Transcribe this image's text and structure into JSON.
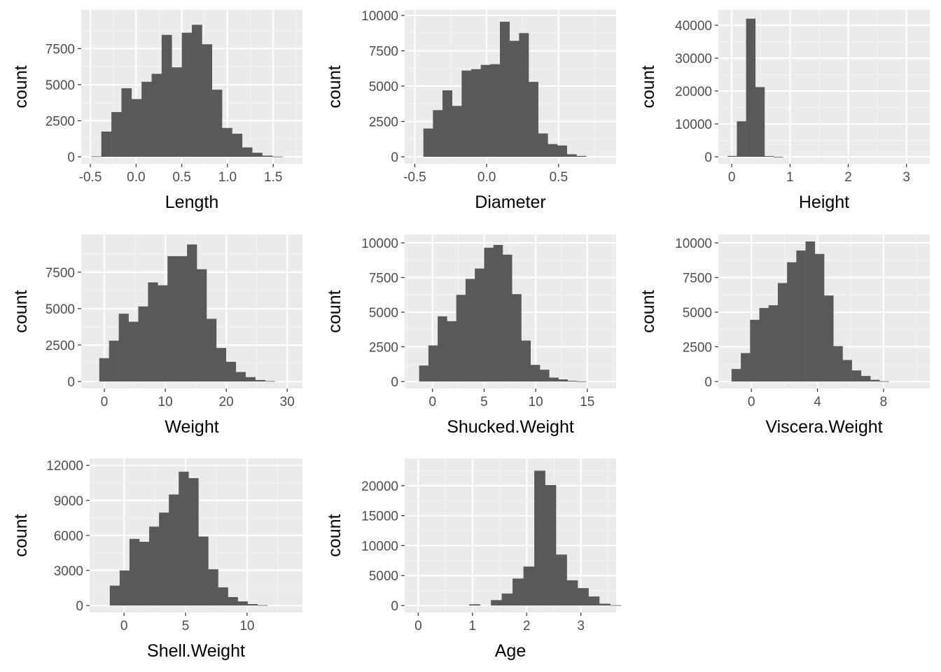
{
  "colors": {
    "panel_background": "#ebebeb",
    "grid_major": "#ffffff",
    "grid_minor": "#f5f5f5",
    "bar_fill": "#595959",
    "tick_text": "#4d4d4d",
    "axis_text": "#000000"
  },
  "chart_data": [
    {
      "type": "bar",
      "xlabel": "Length",
      "ylabel": "count",
      "xlim": [
        -0.6,
        1.82
      ],
      "ylim": [
        0,
        9800
      ],
      "x_ticks": [
        -0.5,
        0.0,
        0.5,
        1.0,
        1.5
      ],
      "x_tick_labels": [
        "-0.5",
        "0.0",
        "0.5",
        "1.0",
        "1.5"
      ],
      "y_ticks": [
        0,
        2500,
        5000,
        7500
      ],
      "y_tick_labels": [
        "0",
        "2500",
        "5000",
        "7500"
      ],
      "bin_start": -0.49,
      "bin_width": 0.11,
      "values": [
        30,
        1750,
        3100,
        4750,
        4000,
        5200,
        5750,
        8450,
        6200,
        8600,
        9150,
        7800,
        4650,
        2000,
        1600,
        650,
        280,
        80,
        15,
        0,
        0,
        0
      ]
    },
    {
      "type": "bar",
      "xlabel": "Diameter",
      "ylabel": "count",
      "xlim": [
        -0.57,
        0.9
      ],
      "ylim": [
        0,
        10000
      ],
      "x_ticks": [
        -0.5,
        0.0,
        0.5
      ],
      "x_tick_labels": [
        "-0.5",
        "0.0",
        "0.5"
      ],
      "y_ticks": [
        0,
        2500,
        5000,
        7500,
        10000
      ],
      "y_tick_labels": [
        "0",
        "2500",
        "5000",
        "7500",
        "10000"
      ],
      "bin_start": -0.44,
      "bin_width": 0.0665,
      "values": [
        2000,
        3300,
        4700,
        3600,
        6100,
        6200,
        6500,
        6550,
        9550,
        8200,
        8750,
        5300,
        1650,
        900,
        800,
        180,
        60,
        0,
        0,
        0
      ]
    },
    {
      "type": "bar",
      "xlabel": "Height",
      "ylabel": "count",
      "xlim": [
        -0.23,
        3.4
      ],
      "ylim": [
        0,
        43000
      ],
      "x_ticks": [
        0,
        1,
        2,
        3
      ],
      "x_tick_labels": [
        "0",
        "1",
        "2",
        "3"
      ],
      "y_ticks": [
        0,
        10000,
        20000,
        30000,
        40000
      ],
      "y_tick_labels": [
        "0",
        "10000",
        "20000",
        "30000",
        "40000"
      ],
      "bin_start": -0.07,
      "bin_width": 0.158,
      "values": [
        250,
        10800,
        42000,
        21200,
        200,
        20,
        0,
        0,
        0,
        0,
        0,
        0,
        0,
        0,
        0,
        0,
        0,
        0,
        0,
        0,
        0,
        0
      ]
    },
    {
      "type": "bar",
      "xlabel": "Weight",
      "ylabel": "count",
      "xlim": [
        -3.8,
        32.5
      ],
      "ylim": [
        0,
        9700
      ],
      "x_ticks": [
        0,
        10,
        20,
        30
      ],
      "x_tick_labels": [
        "0",
        "10",
        "20",
        "30"
      ],
      "y_ticks": [
        0,
        2500,
        5000,
        7500
      ],
      "y_tick_labels": [
        "0",
        "2500",
        "5000",
        "7500"
      ],
      "bin_start": -0.84,
      "bin_width": 1.6,
      "values": [
        1600,
        2800,
        4650,
        4100,
        5150,
        6800,
        6600,
        8600,
        8600,
        9400,
        7700,
        4300,
        2300,
        1350,
        650,
        300,
        100,
        30,
        0,
        0
      ]
    },
    {
      "type": "bar",
      "xlabel": "Shucked.Weight",
      "ylabel": "count",
      "xlim": [
        -2.7,
        17.8
      ],
      "ylim": [
        0,
        10200
      ],
      "x_ticks": [
        0,
        5,
        10,
        15
      ],
      "x_tick_labels": [
        "0",
        "5",
        "10",
        "15"
      ],
      "y_ticks": [
        0,
        2500,
        5000,
        7500,
        10000
      ],
      "y_tick_labels": [
        "0",
        "2500",
        "5000",
        "7500",
        "10000"
      ],
      "bin_start": -1.3,
      "bin_width": 0.9,
      "values": [
        1150,
        2600,
        4700,
        4350,
        6250,
        7400,
        8150,
        9650,
        9850,
        9150,
        6300,
        2950,
        1200,
        850,
        280,
        150,
        50,
        10,
        0,
        0
      ]
    },
    {
      "type": "bar",
      "xlabel": "Viscera.Weight",
      "ylabel": "count",
      "xlim": [
        -2.0,
        10.8
      ],
      "ylim": [
        0,
        10200
      ],
      "x_ticks": [
        0,
        4,
        8
      ],
      "x_tick_labels": [
        "0",
        "4",
        "8"
      ],
      "y_ticks": [
        0,
        2500,
        5000,
        7500,
        10000
      ],
      "y_tick_labels": [
        "0",
        "2500",
        "5000",
        "7500",
        "10000"
      ],
      "bin_start": -1.2,
      "bin_width": 0.56,
      "values": [
        900,
        2050,
        4450,
        5300,
        5500,
        7100,
        8600,
        9450,
        10100,
        9200,
        6200,
        2550,
        1550,
        800,
        400,
        120,
        20,
        0,
        0
      ]
    },
    {
      "type": "bar",
      "xlabel": "Shell.Weight",
      "ylabel": "count",
      "xlim": [
        -2.8,
        14.5
      ],
      "ylim": [
        0,
        12100
      ],
      "x_ticks": [
        0,
        5,
        10
      ],
      "x_tick_labels": [
        "0",
        "5",
        "10"
      ],
      "y_ticks": [
        0,
        3000,
        6000,
        9000,
        12000
      ],
      "y_tick_labels": [
        "0",
        "3000",
        "6000",
        "9000",
        "12000"
      ],
      "bin_start": -1.16,
      "bin_width": 0.8,
      "values": [
        1700,
        3000,
        5700,
        5450,
        6750,
        7950,
        9500,
        11450,
        10900,
        5900,
        3100,
        1550,
        720,
        350,
        120,
        30,
        0,
        0
      ]
    },
    {
      "type": "bar",
      "xlabel": "Age",
      "ylabel": "count",
      "xlim": [
        -0.25,
        3.65
      ],
      "ylim": [
        0,
        23600
      ],
      "x_ticks": [
        0,
        1,
        2,
        3
      ],
      "x_tick_labels": [
        "0",
        "1",
        "2",
        "3"
      ],
      "y_ticks": [
        0,
        5000,
        10000,
        15000,
        20000,
        25000
      ],
      "y_tick_labels": [
        "0",
        "5000",
        "10000",
        "15000",
        "20000",
        ""
      ],
      "bin_start": 0.94,
      "bin_width": 0.2,
      "values": [
        200,
        0,
        900,
        2000,
        4500,
        6500,
        22500,
        20100,
        8500,
        4200,
        2900,
        1500,
        300,
        50
      ]
    }
  ]
}
